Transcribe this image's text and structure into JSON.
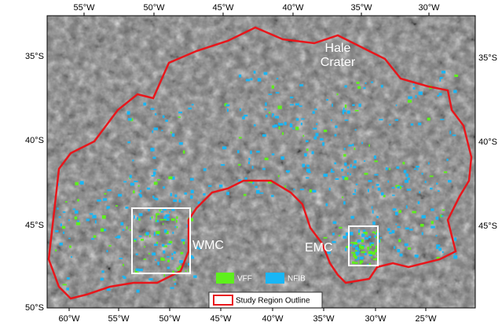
{
  "map": {
    "top_axis_labels": [
      "55°W",
      "50°W",
      "45°W",
      "40°W",
      "35°W",
      "30°W"
    ],
    "bottom_axis_labels": [
      "60°W",
      "55°W",
      "50°W",
      "45°W",
      "40°W",
      "35°W",
      "30°W",
      "25°W"
    ],
    "left_axis_labels": [
      "35°S",
      "40°S",
      "45°S",
      "50°S"
    ],
    "right_axis_labels": [
      "35°S",
      "40°S",
      "45°S"
    ],
    "crater_label": [
      "Hale",
      "Crater"
    ],
    "box_labels": [
      "WMC",
      "EMC"
    ],
    "legend": [
      "VFF",
      "NFIB",
      "Study Region Outline"
    ]
  }
}
